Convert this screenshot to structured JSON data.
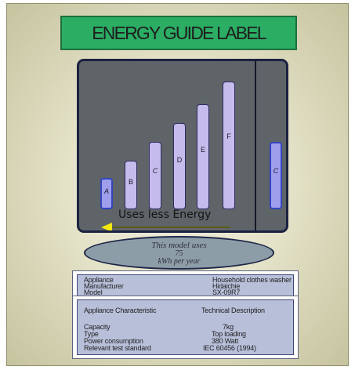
{
  "title": "ENERGY GUIDE LABEL",
  "bars": [
    {
      "label": "A",
      "level": 1,
      "style": "active",
      "italic": true
    },
    {
      "label": "B",
      "level": 2,
      "style": "normal",
      "italic": false
    },
    {
      "label": "C",
      "level": 3,
      "style": "normal",
      "italic": true
    },
    {
      "label": "D",
      "level": 4,
      "style": "normal",
      "italic": false
    },
    {
      "label": "E",
      "level": 5,
      "style": "normal",
      "italic": false
    },
    {
      "label": "F",
      "level": 6,
      "style": "normal",
      "italic": false
    }
  ],
  "current_bar": {
    "label": "C",
    "level": 3
  },
  "uses_less_text": "Uses less Energy",
  "model_usage": {
    "line1": "This model uses",
    "value": "75",
    "unit": "kWh per year"
  },
  "appliance_info": {
    "rows": [
      {
        "label": "Appliance",
        "value": "Household clothes washer"
      },
      {
        "label": "Manufacturer",
        "value": "Hidaichie"
      },
      {
        "label": "Model",
        "value": "SX-09R7"
      }
    ]
  },
  "characteristics": {
    "header_label": "Appliance Characteristic",
    "header_value": "Technical Description",
    "rows": [
      {
        "label": "Capacity",
        "value": "7kg"
      },
      {
        "label": "Type",
        "value": "Top loading"
      },
      {
        "label": "Power consumption",
        "value": "380 Watt"
      },
      {
        "label": "Relevant test standard",
        "value": "IEC 60456 (1994)"
      }
    ]
  },
  "colors": {
    "title_bg": "#2bad63",
    "panel_bg": "#5e6468",
    "bar_fill": "#c6bcec",
    "arrow_head": "#f2e80e",
    "info_bg": "#b8bfd9"
  }
}
